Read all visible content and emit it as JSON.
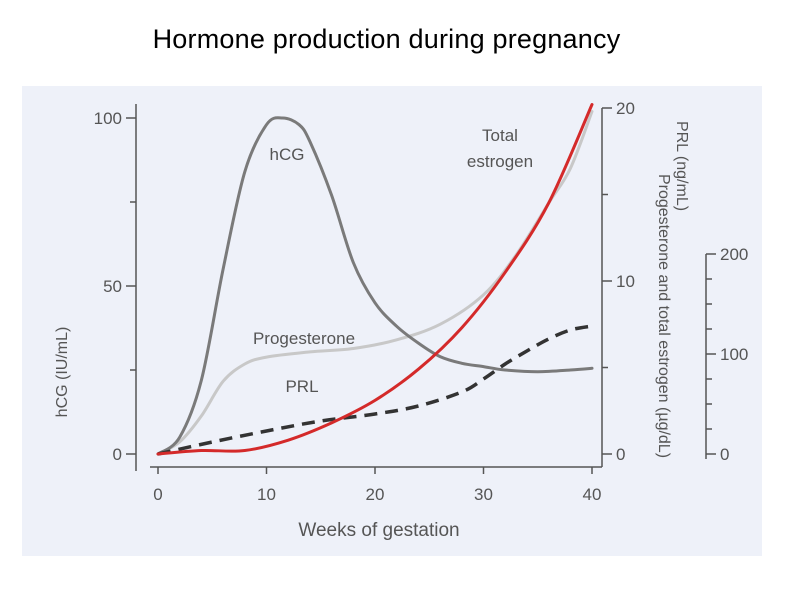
{
  "title": "Hormone production during pregnancy",
  "chart_data": {
    "type": "line",
    "title": "Hormone production during pregnancy",
    "xlabel": "Weeks of gestation",
    "xlim": [
      0,
      40
    ],
    "x_ticks": [
      "0",
      "10",
      "20",
      "30",
      "40"
    ],
    "axes": {
      "left": {
        "label": "hCG (IU/mL)",
        "range": [
          0,
          100
        ],
        "ticks": [
          "0",
          "50",
          "100"
        ]
      },
      "right_inner": {
        "label": "Progesterone and total estrogen (µg/dL)",
        "range": [
          0,
          20
        ],
        "ticks": [
          "0",
          "10",
          "20"
        ]
      },
      "right_outer": {
        "label": "PRL (ng/mL)",
        "range": [
          0,
          200
        ],
        "ticks": [
          "0",
          "100",
          "200"
        ]
      }
    },
    "grid": false,
    "legend": "inline labels",
    "series": [
      {
        "name": "hCG",
        "axis": "left",
        "color": "#7a7a7a",
        "style": "solid",
        "x": [
          0,
          2,
          4,
          6,
          8,
          10,
          11.5,
          13,
          14,
          16,
          18,
          20,
          22,
          24,
          26,
          28,
          30,
          32,
          35,
          38,
          40
        ],
        "y": [
          0,
          5,
          22,
          55,
          84,
          98,
          100,
          98,
          93,
          77,
          57,
          45,
          38,
          33,
          29,
          27,
          26,
          25,
          24.5,
          25,
          25.5
        ]
      },
      {
        "name": "Progesterone",
        "axis": "right_inner",
        "color": "#c8c8c8",
        "style": "solid",
        "x": [
          0,
          2,
          4,
          6,
          8,
          10,
          14,
          18,
          22,
          26,
          30,
          33,
          36,
          38,
          40
        ],
        "y": [
          0,
          0.7,
          2.2,
          4.2,
          5.2,
          5.6,
          5.9,
          6.1,
          6.6,
          7.5,
          9.2,
          11.5,
          14.5,
          16.5,
          19.8
        ]
      },
      {
        "name": "Total estrogen",
        "axis": "right_inner",
        "color": "#d42a2a",
        "style": "solid",
        "x": [
          0,
          4,
          8,
          12,
          16,
          20,
          24,
          28,
          32,
          36,
          40
        ],
        "y": [
          0,
          0.2,
          0.2,
          0.8,
          1.8,
          3.1,
          4.9,
          7.3,
          10.5,
          14.5,
          20.2
        ]
      },
      {
        "name": "PRL",
        "axis": "right_outer",
        "color": "#333333",
        "style": "dashed",
        "x": [
          0,
          5,
          10,
          15,
          20,
          24,
          28,
          30,
          32,
          34,
          36,
          38,
          40
        ],
        "y": [
          0,
          12,
          23,
          33,
          40,
          48,
          62,
          75,
          90,
          103,
          115,
          124,
          128
        ]
      }
    ],
    "annotations": [
      {
        "text": "hCG",
        "series": "hCG"
      },
      {
        "text": "Total",
        "series": "Total estrogen"
      },
      {
        "text": "estrogen",
        "series": "Total estrogen"
      },
      {
        "text": "Progesterone",
        "series": "Progesterone"
      },
      {
        "text": "PRL",
        "series": "PRL"
      }
    ]
  }
}
